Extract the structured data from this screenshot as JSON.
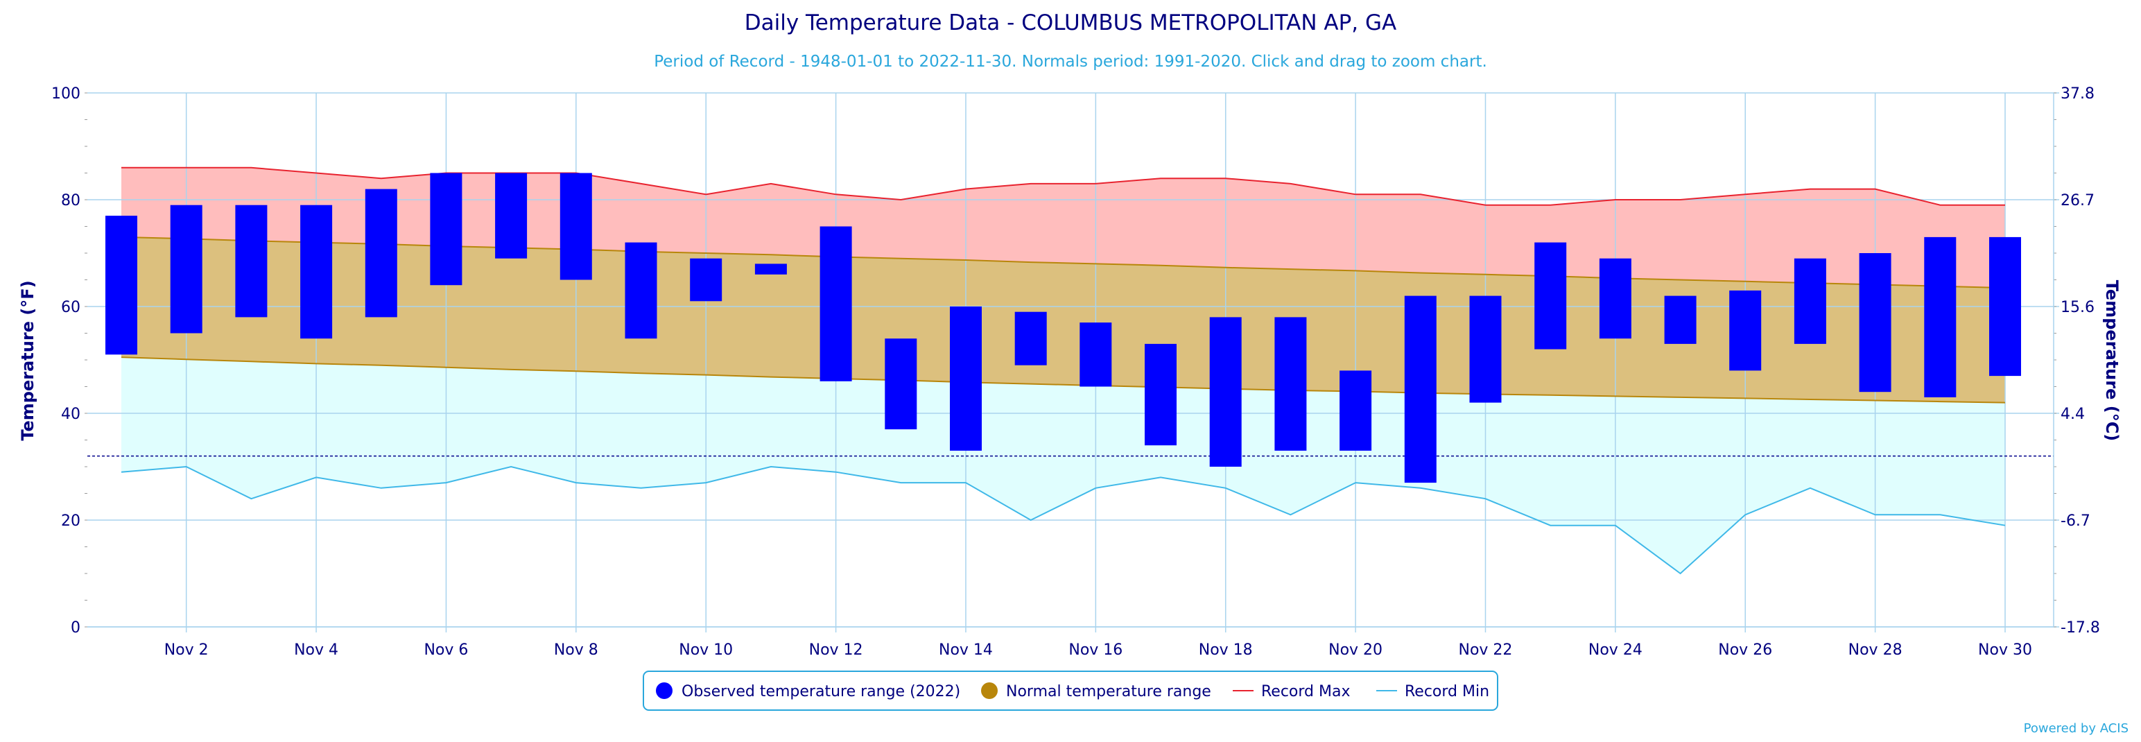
{
  "chart_data": {
    "type": "bar",
    "title": "Daily Temperature Data - COLUMBUS METROPOLITAN AP, GA",
    "subtitle": "Period of Record - 1948-01-01 to 2022-11-30. Normals period: 1991-2020. Click and drag to zoom chart.",
    "ylabel": "Temperature (°F)",
    "ylabel_right": "Temperature (°C)",
    "ylim": [
      0,
      100
    ],
    "y_ticks": [
      "0",
      "20",
      "40",
      "60",
      "80",
      "100"
    ],
    "y_ticks_right": [
      "-17.8",
      "-6.7",
      "4.4",
      "15.6",
      "26.7",
      "37.8"
    ],
    "x_range": [
      1,
      30
    ],
    "x_ticks": [
      "Nov 2",
      "Nov 4",
      "Nov 6",
      "Nov 8",
      "Nov 10",
      "Nov 12",
      "Nov 14",
      "Nov 16",
      "Nov 18",
      "Nov 20",
      "Nov 22",
      "Nov 24",
      "Nov 26",
      "Nov 28",
      "Nov 30"
    ],
    "x_tick_days": [
      2,
      4,
      6,
      8,
      10,
      12,
      14,
      16,
      18,
      20,
      22,
      24,
      26,
      28,
      30
    ],
    "days": [
      1,
      2,
      3,
      4,
      5,
      6,
      7,
      8,
      9,
      10,
      11,
      12,
      13,
      14,
      15,
      16,
      17,
      18,
      19,
      20,
      21,
      22,
      23,
      24,
      25,
      26,
      27,
      28,
      29,
      30
    ],
    "freezing_line": 32,
    "grid": true,
    "legend_position": "bottom-center",
    "series": [
      {
        "name": "Observed temperature range (2022)",
        "color": "#0000ff",
        "high": [
          77,
          79,
          79,
          79,
          82,
          85,
          85,
          85,
          72,
          69,
          68,
          75,
          54,
          60,
          59,
          57,
          53,
          58,
          58,
          48,
          62,
          62,
          72,
          69,
          62,
          63,
          69,
          70,
          73,
          73
        ],
        "low": [
          51,
          55,
          58,
          54,
          58,
          64,
          69,
          65,
          54,
          61,
          66,
          46,
          37,
          33,
          49,
          45,
          34,
          30,
          33,
          33,
          27,
          42,
          52,
          54,
          53,
          48,
          53,
          44,
          43,
          47
        ]
      },
      {
        "name": "Normal temperature range",
        "color": "#b8860b",
        "high": [
          73,
          72.7,
          72.3,
          72,
          71.7,
          71.3,
          71,
          70.7,
          70.3,
          70,
          69.7,
          69.3,
          69,
          68.7,
          68.3,
          68,
          67.7,
          67.3,
          67,
          66.7,
          66.3,
          66,
          65.7,
          65.3,
          65,
          64.7,
          64.4,
          64.1,
          63.8,
          63.5
        ],
        "low": [
          50.5,
          50.1,
          49.7,
          49.3,
          49,
          48.6,
          48.2,
          47.9,
          47.5,
          47.2,
          46.8,
          46.5,
          46.2,
          45.8,
          45.5,
          45.2,
          44.9,
          44.6,
          44.3,
          44.1,
          43.8,
          43.6,
          43.4,
          43.2,
          43,
          42.8,
          42.6,
          42.4,
          42.2,
          42
        ]
      },
      {
        "name": "Record Max",
        "color": "#e8232f",
        "values": [
          86,
          86,
          86,
          85,
          84,
          85,
          85,
          85,
          83,
          81,
          83,
          81,
          80,
          82,
          83,
          83,
          84,
          84,
          83,
          81,
          81,
          79,
          79,
          80,
          80,
          81,
          82,
          82,
          79,
          79
        ]
      },
      {
        "name": "Record Min",
        "color": "#3fb8e8",
        "values": [
          29,
          30,
          24,
          28,
          26,
          27,
          30,
          27,
          26,
          27,
          30,
          29,
          27,
          27,
          20,
          26,
          28,
          26,
          21,
          27,
          26,
          24,
          19,
          19,
          10,
          21,
          26,
          21,
          21,
          19
        ]
      }
    ],
    "colors": {
      "record_high_fill": "#ffbdbd",
      "normal_fill": "#dcc07e",
      "record_low_fill": "#e0fefe",
      "grid": "#a9d4ee"
    }
  },
  "legend": {
    "items": [
      {
        "label": "Observed temperature range (2022)",
        "icon": "filled-circle",
        "color": "#0000ff"
      },
      {
        "label": "Normal temperature range",
        "icon": "filled-circle",
        "color": "#b8860b"
      },
      {
        "label": "Record Max",
        "icon": "line",
        "color": "#e8232f"
      },
      {
        "label": "Record Min",
        "icon": "line",
        "color": "#3fb8e8"
      }
    ]
  },
  "credit": "Powered by ACIS"
}
